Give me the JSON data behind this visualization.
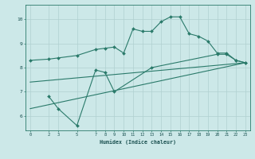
{
  "bg_color": "#cce8e8",
  "grid_color": "#b0d0d0",
  "line_color": "#2a7a6a",
  "line1_x": [
    0,
    2,
    3,
    5,
    7,
    8,
    9,
    10,
    11,
    12,
    13,
    14,
    15,
    16,
    17,
    18,
    19,
    20,
    21,
    22,
    23
  ],
  "line1_y": [
    8.3,
    8.35,
    8.4,
    8.5,
    8.75,
    8.8,
    8.85,
    8.6,
    9.6,
    9.5,
    9.5,
    9.9,
    10.1,
    10.1,
    9.4,
    9.3,
    9.1,
    8.6,
    8.6,
    8.3,
    8.2
  ],
  "line2_x": [
    2,
    3,
    5,
    7,
    8,
    9,
    13,
    20,
    21,
    22,
    23
  ],
  "line2_y": [
    6.8,
    6.3,
    5.6,
    7.9,
    7.8,
    7.0,
    8.0,
    8.55,
    8.55,
    8.3,
    8.2
  ],
  "line3_x": [
    0,
    23
  ],
  "line3_y": [
    6.3,
    8.2
  ],
  "line4_x": [
    0,
    23
  ],
  "line4_y": [
    7.4,
    8.2
  ],
  "xlabel": "Humidex (Indice chaleur)",
  "xticks": [
    0,
    2,
    3,
    5,
    7,
    8,
    9,
    10,
    11,
    12,
    13,
    14,
    15,
    16,
    17,
    18,
    19,
    20,
    21,
    22,
    23
  ],
  "yticks": [
    6,
    7,
    8,
    9,
    10
  ],
  "xlim": [
    -0.5,
    23.5
  ],
  "ylim": [
    5.4,
    10.6
  ]
}
